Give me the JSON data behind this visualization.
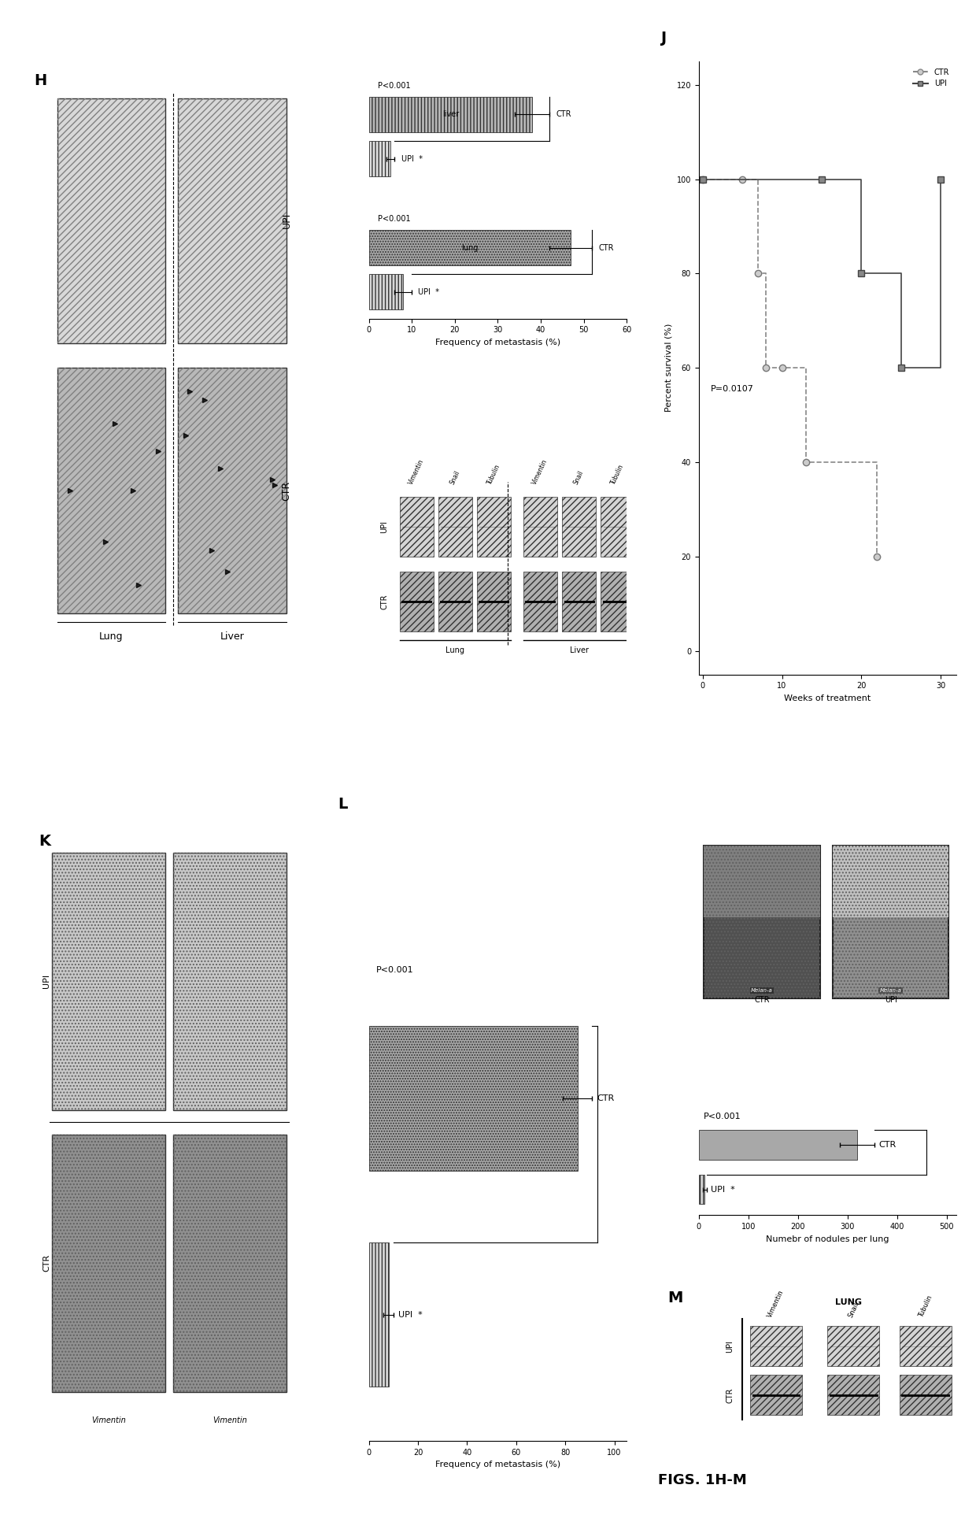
{
  "fig_title": "FIGS. 1H-M",
  "background_color": "#ffffff",
  "panel_J": {
    "xlabel": "Weeks of treatment",
    "ylabel": "Percent survival (%)",
    "xlim": [
      0,
      30
    ],
    "ylim": [
      0,
      120
    ],
    "xticks": [
      0,
      10,
      20,
      30
    ],
    "yticks": [
      0,
      20,
      40,
      60,
      80,
      100,
      120
    ],
    "CTR_x": [
      0,
      5,
      7,
      8,
      10,
      13,
      22
    ],
    "CTR_y": [
      100,
      100,
      80,
      60,
      60,
      40,
      20
    ],
    "UPI_x": [
      0,
      15,
      20,
      25,
      30
    ],
    "UPI_y": [
      100,
      100,
      80,
      60,
      100
    ],
    "p_value": "P=0.0107",
    "CTR_color": "#888888",
    "UPI_color": "#444444"
  },
  "panel_I_bar": {
    "values_CTR_lung": 47,
    "values_UPI_lung": 8,
    "values_CTR_liver": 38,
    "values_UPI_liver": 5,
    "error_CTR_lung": 5,
    "error_UPI_lung": 2,
    "error_CTR_liver": 4,
    "error_UPI_liver": 1,
    "xlabel": "Frequency of metastasis (%)",
    "xlim": [
      0,
      60
    ],
    "xticks": [
      0,
      10,
      20,
      30,
      40,
      50,
      60
    ],
    "p_value": "P<0.001"
  },
  "panel_L_bar": {
    "values_CTR": 85,
    "values_UPI": 8,
    "error_CTR": 6,
    "error_UPI": 2,
    "xlabel": "Frequency of metastasis (%)",
    "xlim": [
      0,
      100
    ],
    "xticks": [
      0,
      20,
      40,
      60,
      80,
      100
    ],
    "p_value": "P<0.001"
  },
  "panel_M_bar": {
    "values_CTR": 320,
    "values_UPI": 12,
    "error_CTR": 35,
    "error_UPI": 4,
    "xlabel": "Numebr of nodules per lung",
    "xlim": [
      0,
      500
    ],
    "xticks": [
      0,
      100,
      200,
      300,
      400,
      500
    ],
    "p_value": "P<0.001"
  },
  "colors": {
    "CTR_bar": "#a8a8a8",
    "UPI_bar": "#d8d8d8",
    "CTR_bar_liver": "#b8b8b8",
    "UPI_bar_liver": "#e0e0e0",
    "wb_CTR": "#b0b0b0",
    "wb_UPI": "#d4d4d4",
    "image_CTR_dark": "#606060",
    "image_CTR_light": "#909090",
    "image_UPI_light": "#c8c8c8",
    "image_UPI_lighter": "#e0e0e0"
  }
}
